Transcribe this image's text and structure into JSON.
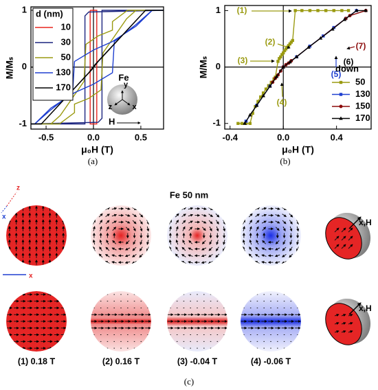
{
  "chart_data": [
    {
      "type": "line",
      "xlabel": "μ₀H (T)",
      "ylabel": "M/Mₛ",
      "xlim": [
        -0.66,
        0.74
      ],
      "ylim": [
        -1.09,
        1.06
      ],
      "xticks": [
        -0.5,
        {
          "value": 0,
          "label": "0.0"
        },
        0.5
      ],
      "yticks": [
        -1,
        0,
        1
      ],
      "zero_lines": true,
      "legend": {
        "title": "d (nm)",
        "corner": "upper left"
      },
      "series": [
        {
          "name": "10",
          "color": "#e8251f",
          "x": [
            -0.035,
            -0.035,
            0.035,
            0.035,
            -0.035
          ],
          "values": [
            1,
            -1,
            -1,
            1,
            1
          ]
        },
        {
          "name": "30",
          "color": "#1a237e",
          "x": [
            0.74,
            -0.05,
            -0.09,
            -0.09,
            -0.66,
            0.05,
            0.09,
            0.09,
            0.74
          ],
          "values": [
            1,
            0.97,
            0.9,
            -1,
            -1,
            -0.97,
            -0.9,
            1,
            1
          ]
        },
        {
          "name": "50",
          "color": "#9a9a10",
          "x": [
            0.74,
            0.36,
            0.2,
            0.2,
            0.05,
            -0.08,
            -0.1,
            -0.35,
            -0.45,
            -0.66,
            -0.36,
            -0.2,
            -0.2,
            -0.05,
            0.08,
            0.1,
            0.35,
            0.45,
            0.74
          ],
          "values": [
            1,
            1,
            0.8,
            0.65,
            0.55,
            0.4,
            -0.25,
            -0.85,
            -1,
            -1,
            -1,
            -0.8,
            -0.65,
            -0.55,
            -0.4,
            0.25,
            0.85,
            1,
            1
          ]
        },
        {
          "name": "130",
          "color": "#1e3fd0",
          "x": [
            0.74,
            0.62,
            0.45,
            0.2,
            0.0,
            -0.2,
            -0.22,
            -0.45,
            -0.62,
            -0.66,
            -0.62,
            -0.45,
            -0.2,
            0.0,
            0.2,
            0.22,
            0.45,
            0.62,
            0.74
          ],
          "values": [
            1,
            1,
            0.72,
            0.45,
            0.3,
            0.1,
            -0.45,
            -0.75,
            -1,
            -1,
            -1,
            -0.72,
            -0.45,
            -0.3,
            -0.1,
            0.45,
            0.75,
            1,
            1
          ]
        },
        {
          "name": "170",
          "color": "#000000",
          "x": [
            0.74,
            0.55,
            0.05,
            -0.02,
            -0.55,
            -0.66,
            -0.55,
            -0.05,
            0.02,
            0.55,
            0.74
          ],
          "values": [
            1,
            1,
            0.1,
            -0.05,
            -1,
            -1,
            -1,
            -0.1,
            0.05,
            1,
            1
          ]
        }
      ],
      "inset": {
        "label": "Fe",
        "axes": [
          "y",
          "z",
          "x"
        ],
        "field": "H"
      }
    },
    {
      "type": "line",
      "xlabel": "μ₀H (T)",
      "ylabel": "M/Mₛ",
      "xlim": [
        -0.44,
        0.66
      ],
      "ylim": [
        -1.1,
        1.09
      ],
      "xticks": [
        -0.4,
        {
          "value": 0,
          "label": "0.0"
        },
        0.4
      ],
      "yticks": [
        -1,
        0,
        1
      ],
      "zero_lines": true,
      "legend": {
        "title": "down",
        "corner": "lower right"
      },
      "series": [
        {
          "name": "50",
          "color": "#9a9a10",
          "marker": "square",
          "x": [
            0.49,
            0.44,
            0.38,
            0.32,
            0.26,
            0.2,
            0.14,
            0.09,
            0.07,
            0.06,
            0.05,
            0.04,
            0.03,
            0.02,
            0.01,
            0,
            -0.01,
            -0.02,
            -0.03,
            -0.04,
            -0.06,
            -0.07,
            -0.09,
            -0.11,
            -0.13,
            -0.15,
            -0.17,
            -0.19,
            -0.21,
            -0.23,
            -0.25,
            -0.28,
            -0.31,
            -0.34
          ],
          "values": [
            1,
            1,
            1,
            1,
            1,
            1,
            1,
            1,
            0.47,
            0.44,
            0.41,
            0.38,
            0.35,
            0.32,
            0.29,
            0.25,
            0.22,
            0.18,
            0.15,
            0.1,
            -0.18,
            -0.21,
            -0.27,
            -0.33,
            -0.39,
            -0.46,
            -0.53,
            -0.61,
            -0.7,
            -0.82,
            -1,
            -1,
            -1,
            -1
          ]
        },
        {
          "name": "130",
          "color": "#1e3fd0",
          "marker": "square",
          "x": [
            0.55,
            0.47,
            0.38,
            0.3,
            0.2,
            0.1,
            0,
            -0.1,
            -0.2,
            -0.28
          ],
          "values": [
            1,
            0.86,
            0.7,
            0.55,
            0.37,
            0.18,
            0,
            -0.34,
            -0.68,
            -0.96
          ]
        },
        {
          "name": "150",
          "color": "#8b0a0a",
          "marker": "circle",
          "x": [
            0.62,
            0.5,
            0.47,
            0.06,
            0.04,
            0.02,
            0,
            -0.02,
            -0.04,
            -0.06,
            -0.08
          ],
          "values": [
            1,
            0.91,
            0.86,
            0.11,
            0.07,
            0.04,
            0,
            -0.07,
            -0.14,
            -0.2,
            -0.27
          ]
        },
        {
          "name": "170",
          "color": "#000000",
          "marker": "triangle",
          "x": [
            0.62,
            0.55,
            0.46,
            0.37,
            0.28,
            0.19,
            0.1,
            0.05,
            0,
            -0.05,
            -0.1,
            -0.15,
            -0.2,
            -0.25,
            -0.29
          ],
          "values": [
            1,
            1,
            0.84,
            0.67,
            0.51,
            0.35,
            0.18,
            0.09,
            0,
            -0.17,
            -0.34,
            -0.51,
            -0.68,
            -0.85,
            -1
          ]
        }
      ],
      "annotations": [
        {
          "text": "(1)",
          "color": "#9a9a10"
        },
        {
          "text": "(2)",
          "color": "#9a9a10"
        },
        {
          "text": "(3)",
          "color": "#9a9a10"
        },
        {
          "text": "(4)",
          "color": "#9a9a10"
        },
        {
          "text": "(5)",
          "color": "#1e3fd0"
        },
        {
          "text": "(6)",
          "color": "#000000"
        },
        {
          "text": "(7)",
          "color": "#8b0a0a"
        }
      ]
    }
  ],
  "panel_labels": [
    "(a)",
    "(b)",
    "(c)"
  ],
  "panel_c": {
    "title": "Fe 50 nm",
    "captions": [
      "(1) 0.18 T",
      "(2) 0.16 T",
      "(3) -0.04 T",
      "(4) -0.06 T"
    ],
    "field_labels": [
      "x,H",
      "x,H"
    ],
    "axis_icons": [
      "z",
      "x",
      "x"
    ]
  }
}
